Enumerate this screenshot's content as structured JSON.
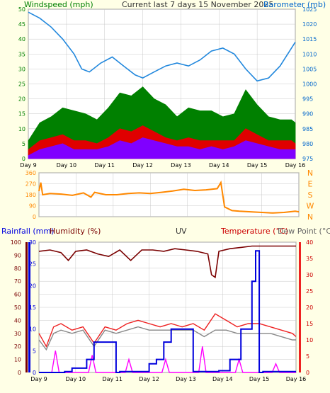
{
  "header": {
    "windspeed_label": "Windspeed (mph)",
    "title": "Current last 7 days 15 November 2025",
    "barometer_label": "Barometer (mb)"
  },
  "colors": {
    "background": "#ffffe6",
    "plot_bg": "#ffffff",
    "grid": "#c8c8c8",
    "wind_gust": "#008000",
    "wind_avg": "#e00000",
    "wind_low": "#8000ff",
    "barometer": "#2288dd",
    "wind_dir": "#ff8800",
    "rain": "#0000dd",
    "humidity": "#7a0000",
    "uv": "#ff00ff",
    "temperature": "#ee2222",
    "dew_point": "#888888",
    "label_green": "#008000",
    "label_blue": "#0066cc",
    "label_dark": "#333333",
    "label_red": "#cc0000",
    "label_orange": "#ff8800"
  },
  "chart_data": [
    {
      "type": "line",
      "name": "wind-barometer",
      "x_ticks": [
        "Day 9",
        "Day 10",
        "Day 11",
        "Day 12",
        "Day 13",
        "Day 14",
        "Day 15",
        "Day 16"
      ],
      "left_axis": {
        "label": "Windspeed (mph)",
        "ticks": [
          0,
          5,
          10,
          15,
          20,
          25,
          30,
          35,
          40,
          45,
          50
        ],
        "ylim": [
          0,
          50
        ]
      },
      "right_axis": {
        "label": "Barometer (mb)",
        "ticks": [
          975,
          980,
          985,
          990,
          995,
          1000,
          1005,
          1010,
          1015,
          1020,
          1025
        ],
        "ylim": [
          975,
          1025
        ]
      },
      "series": [
        {
          "name": "Barometer",
          "axis": "right",
          "x": [
            9,
            9.3,
            9.6,
            9.9,
            10.2,
            10.4,
            10.6,
            10.9,
            11.2,
            11.5,
            11.8,
            12.0,
            12.3,
            12.6,
            12.9,
            13.2,
            13.5,
            13.8,
            14.1,
            14.4,
            14.7,
            15.0,
            15.3,
            15.6,
            15.9,
            16.0
          ],
          "y": [
            1024,
            1022,
            1019,
            1015,
            1010,
            1005,
            1004,
            1007,
            1009,
            1006,
            1003,
            1002,
            1004,
            1006,
            1007,
            1006,
            1008,
            1011,
            1012,
            1010,
            1005,
            1001,
            1002,
            1006,
            1012,
            1014
          ]
        },
        {
          "name": "Gust",
          "axis": "left",
          "x": [
            9,
            9.3,
            9.6,
            9.9,
            10.2,
            10.5,
            10.8,
            11.1,
            11.4,
            11.7,
            12.0,
            12.3,
            12.6,
            12.9,
            13.2,
            13.5,
            13.8,
            14.1,
            14.4,
            14.7,
            15.0,
            15.3,
            15.6,
            15.9,
            16.0
          ],
          "y": [
            6,
            12,
            14,
            17,
            16,
            15,
            13,
            17,
            22,
            21,
            24,
            20,
            18,
            14,
            17,
            16,
            16,
            14,
            15,
            23,
            18,
            14,
            13,
            13,
            12
          ]
        },
        {
          "name": "Average",
          "axis": "left",
          "x": [
            9,
            9.3,
            9.6,
            9.9,
            10.2,
            10.5,
            10.8,
            11.1,
            11.4,
            11.7,
            12.0,
            12.3,
            12.6,
            12.9,
            13.2,
            13.5,
            13.8,
            14.1,
            14.4,
            14.7,
            15.0,
            15.3,
            15.6,
            15.9,
            16.0
          ],
          "y": [
            3,
            6,
            7,
            8,
            6,
            6,
            5,
            7,
            10,
            9,
            11,
            9,
            7,
            6,
            7,
            6,
            6,
            6,
            6,
            10,
            8,
            6,
            6,
            6,
            5
          ]
        },
        {
          "name": "Low",
          "axis": "left",
          "x": [
            9,
            9.3,
            9.6,
            9.9,
            10.2,
            10.5,
            10.8,
            11.1,
            11.4,
            11.7,
            12.0,
            12.3,
            12.6,
            12.9,
            13.2,
            13.5,
            13.8,
            14.1,
            14.4,
            14.7,
            15.0,
            15.3,
            15.6,
            15.9,
            16.0
          ],
          "y": [
            1,
            3,
            4,
            5,
            3,
            3,
            3,
            4,
            6,
            5,
            7,
            6,
            5,
            4,
            4,
            3,
            4,
            3,
            4,
            6,
            5,
            4,
            3,
            3,
            3
          ]
        }
      ]
    },
    {
      "type": "scatter",
      "name": "wind-direction",
      "x_ticks": [
        "Day 9",
        "Day 10",
        "Day 11",
        "Day 12",
        "Day 13",
        "Day 14",
        "Day 15",
        "Day 16"
      ],
      "left_axis": {
        "ticks": [
          0,
          90,
          180,
          270,
          360
        ],
        "ylim": [
          0,
          360
        ]
      },
      "right_axis": {
        "ticks": [
          "N",
          "W",
          "S",
          "E",
          "N"
        ]
      },
      "series": [
        {
          "name": "Direction",
          "x": [
            9.0,
            9.05,
            9.1,
            9.3,
            9.6,
            9.9,
            10.2,
            10.4,
            10.5,
            10.8,
            11.1,
            11.4,
            11.7,
            12.0,
            12.3,
            12.6,
            12.9,
            13.2,
            13.5,
            13.8,
            13.9,
            14.0,
            14.2,
            14.4,
            14.7,
            15.0,
            15.3,
            15.6,
            15.9,
            16.0
          ],
          "y": [
            210,
            280,
            180,
            190,
            185,
            175,
            195,
            160,
            200,
            180,
            180,
            190,
            195,
            190,
            200,
            210,
            225,
            215,
            220,
            230,
            280,
            80,
            50,
            45,
            40,
            35,
            30,
            35,
            45,
            40
          ]
        }
      ]
    },
    {
      "type": "line",
      "name": "rain-humidity-temperature",
      "header_labels": {
        "rainfall": "Rainfall (mm)",
        "humidity": "Humidity (%)",
        "uv": "UV",
        "temperature": "Temperature (°C)",
        "dew_point": "Dew Point (°C)"
      },
      "x_ticks": [
        "Day 9",
        "Day 10",
        "Day 11",
        "Day 12",
        "Day 13",
        "Day 14",
        "Day 15",
        "Day 16"
      ],
      "rainfall_axis": {
        "ticks": [
          0,
          10,
          20,
          30,
          40,
          50,
          60,
          70,
          80,
          90,
          100
        ],
        "ylim": [
          0,
          100
        ]
      },
      "humidity_axis": {
        "ticks": [
          0,
          5,
          10,
          15,
          20,
          25,
          30
        ],
        "ylim": [
          0,
          30
        ]
      },
      "temperature_axis": {
        "ticks": [
          0,
          5,
          10,
          15,
          20,
          25,
          30,
          35,
          40
        ],
        "ylim": [
          0,
          40
        ]
      },
      "series": [
        {
          "name": "Humidity",
          "x": [
            9,
            9.3,
            9.6,
            9.8,
            10.0,
            10.3,
            10.6,
            10.9,
            11.2,
            11.5,
            11.8,
            12.1,
            12.4,
            12.7,
            13.0,
            13.3,
            13.6,
            13.7,
            13.8,
            13.9,
            14.2,
            14.5,
            14.8,
            15.1,
            15.4,
            15.7,
            16.0
          ],
          "y": [
            93,
            94,
            92,
            86,
            93,
            94,
            91,
            89,
            94,
            86,
            94,
            94,
            93,
            95,
            94,
            93,
            91,
            75,
            73,
            93,
            95,
            96,
            97,
            97,
            97,
            97,
            97
          ]
        },
        {
          "name": "Rain",
          "x": [
            9,
            9.7,
            9.9,
            10.0,
            10.3,
            10.5,
            10.8,
            11.1,
            11.2,
            11.8,
            12.0,
            12.2,
            12.4,
            12.6,
            13.1,
            13.2,
            13.6,
            13.9,
            14.2,
            14.5,
            14.8,
            14.9,
            15.0,
            15.1,
            15.5,
            16.0
          ],
          "y": [
            0,
            0.2,
            1,
            1,
            3,
            7,
            7,
            0,
            0.2,
            0.2,
            2,
            3,
            7,
            10,
            10,
            0.2,
            0.2,
            0.4,
            3,
            10,
            21,
            28,
            0,
            0.2,
            0.2,
            0.2
          ]
        },
        {
          "name": "Temperature",
          "x": [
            9,
            9.2,
            9.4,
            9.6,
            9.9,
            10.2,
            10.5,
            10.8,
            11.1,
            11.4,
            11.7,
            12.0,
            12.3,
            12.6,
            12.9,
            13.2,
            13.5,
            13.8,
            14.1,
            14.4,
            14.7,
            15.0,
            15.3,
            15.6,
            15.9,
            16.0
          ],
          "y": [
            12,
            8,
            14,
            15,
            13,
            14,
            9,
            14,
            13,
            15,
            16,
            15,
            14,
            15,
            14,
            15,
            13,
            18,
            16,
            14,
            15,
            15,
            14,
            13,
            12,
            11
          ]
        },
        {
          "name": "Dew Point",
          "x": [
            9,
            9.2,
            9.4,
            9.6,
            9.9,
            10.2,
            10.5,
            10.8,
            11.1,
            11.4,
            11.7,
            12.0,
            12.3,
            12.6,
            12.9,
            13.2,
            13.5,
            13.8,
            14.1,
            14.4,
            14.7,
            15.0,
            15.3,
            15.6,
            15.9,
            16.0
          ],
          "y": [
            10,
            7,
            12,
            13,
            12,
            13,
            8,
            13,
            12,
            13,
            14,
            13,
            13,
            13,
            13,
            13,
            11,
            13,
            13,
            12,
            12,
            12,
            12,
            11,
            10,
            10
          ]
        },
        {
          "name": "UV",
          "x": [
            9,
            9.35,
            9.45,
            9.55,
            9.8,
            10.35,
            10.45,
            10.55,
            10.8,
            11.35,
            11.45,
            11.55,
            11.8,
            12.35,
            12.45,
            12.55,
            12.8,
            13.35,
            13.45,
            13.55,
            13.8,
            14.35,
            14.45,
            14.55,
            14.8,
            15.35,
            15.45,
            15.55,
            16.0
          ],
          "y": [
            0,
            0,
            5,
            0,
            0,
            0,
            4,
            0,
            0,
            0,
            3,
            0,
            0,
            0,
            3,
            0,
            0,
            0,
            6,
            0,
            0,
            0,
            3,
            0,
            0,
            0,
            2,
            0,
            0
          ]
        }
      ]
    }
  ]
}
